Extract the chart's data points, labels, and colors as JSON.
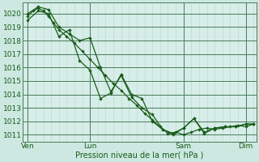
{
  "xlabel": "Pression niveau de la mer( hPa )",
  "background_color": "#cce8e0",
  "plot_bg_color": "#d6ede8",
  "line_color": "#1a5c1a",
  "grid_color_minor": "#b8d8cc",
  "grid_color_major": "#4a7a5a",
  "ylim": [
    1010.5,
    1020.8
  ],
  "yticks": [
    1011,
    1012,
    1013,
    1014,
    1015,
    1016,
    1017,
    1018,
    1019,
    1020
  ],
  "xlim": [
    -4,
    176
  ],
  "day_positions": [
    0,
    48,
    120,
    168
  ],
  "day_labels": [
    "Ven",
    "Lun",
    "Sam",
    "Dim"
  ],
  "line1_x": [
    0,
    4,
    8,
    12,
    16,
    20,
    24,
    30,
    36,
    42,
    48,
    54,
    60,
    66,
    72,
    78,
    84,
    90,
    96,
    102,
    108,
    114,
    120,
    126,
    132,
    138,
    144,
    150,
    156,
    162,
    168,
    174
  ],
  "line1_y": [
    1019.8,
    1020.2,
    1020.4,
    1020.2,
    1019.8,
    1019.3,
    1018.8,
    1018.3,
    1017.8,
    1017.2,
    1016.6,
    1016.0,
    1015.4,
    1014.8,
    1014.3,
    1013.7,
    1013.2,
    1012.6,
    1012.1,
    1011.6,
    1011.1,
    1011.2,
    1011.0,
    1011.2,
    1011.4,
    1011.5,
    1011.4,
    1011.5,
    1011.6,
    1011.7,
    1011.6,
    1011.8
  ],
  "line2_x": [
    0,
    8,
    16,
    24,
    32,
    40,
    48,
    56,
    64,
    72,
    80,
    88,
    96,
    104,
    112,
    120,
    128,
    136,
    144,
    152,
    160,
    168,
    174
  ],
  "line2_y": [
    1020.0,
    1020.5,
    1020.3,
    1019.0,
    1018.5,
    1018.0,
    1018.2,
    1016.0,
    1014.2,
    1015.4,
    1013.8,
    1013.0,
    1012.5,
    1011.4,
    1011.1,
    1011.5,
    1012.2,
    1011.2,
    1011.5,
    1011.6,
    1011.6,
    1011.8,
    1011.8
  ],
  "line3_x": [
    0,
    8,
    16,
    24,
    32,
    40,
    48,
    56,
    64,
    72,
    80,
    88,
    96,
    104,
    112,
    120,
    128,
    136,
    144,
    152,
    160,
    168,
    174
  ],
  "line3_y": [
    1019.5,
    1020.2,
    1020.0,
    1018.3,
    1018.8,
    1016.5,
    1015.8,
    1013.7,
    1014.1,
    1015.5,
    1014.0,
    1013.7,
    1012.0,
    1011.4,
    1011.0,
    1011.5,
    1012.2,
    1011.1,
    1011.5,
    1011.6,
    1011.6,
    1011.8,
    1011.8
  ]
}
